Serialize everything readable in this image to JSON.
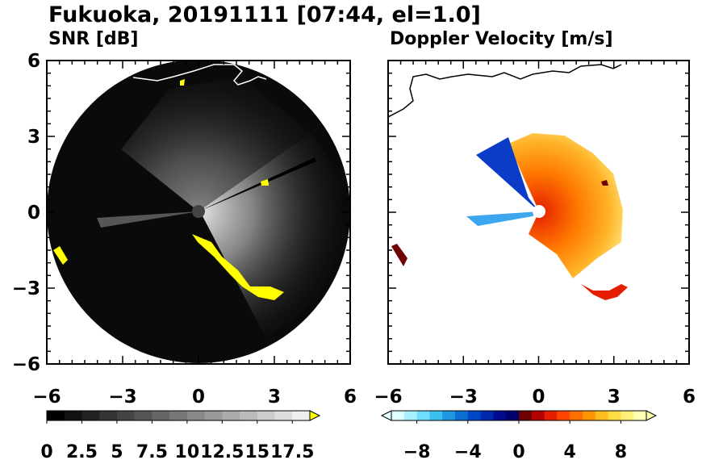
{
  "figure": {
    "title": "Fukuoka, 20191111 [07:44, el=1.0]"
  },
  "chart_data": [
    {
      "type": "heatmap",
      "title": "SNR [dB]",
      "xlim": [
        -6,
        6
      ],
      "ylim": [
        -6,
        6
      ],
      "xticks": [
        -6,
        -3,
        0,
        3,
        6
      ],
      "yticks": [
        -6,
        -3,
        0,
        3,
        6
      ],
      "xtick_labels": [
        "−6",
        "−3",
        "0",
        "3",
        "6"
      ],
      "ytick_labels": [
        "−6",
        "−3",
        "0",
        "3",
        "6"
      ],
      "range_ring_radius": 6,
      "radar_center": [
        0,
        0
      ],
      "colorbar": {
        "min": 0,
        "max": 18.75,
        "extend": "max",
        "tick_values": [
          0,
          2.5,
          5,
          7.5,
          10,
          12.5,
          15,
          17.5
        ],
        "tick_labels": [
          "0",
          "2.5",
          "5",
          "7.5",
          "10",
          "12.5",
          "15",
          "17.5"
        ],
        "over_color": "#ffff00",
        "colors": [
          "#000000",
          "#111111",
          "#222222",
          "#333333",
          "#444444",
          "#555555",
          "#666666",
          "#777777",
          "#888888",
          "#999999",
          "#aaaaaa",
          "#bbbbbb",
          "#cccccc",
          "#dddddd",
          "#eeeeee"
        ]
      }
    },
    {
      "type": "heatmap",
      "title": "Doppler Velocity [m/s]",
      "xlim": [
        -6,
        6
      ],
      "ylim": [
        -6,
        6
      ],
      "xticks": [
        -6,
        -3,
        0,
        3,
        6
      ],
      "yticks": [
        -6,
        -3,
        0,
        3,
        6
      ],
      "xtick_labels": [
        "−6",
        "−3",
        "0",
        "3",
        "6"
      ],
      "ytick_labels": [
        "−6",
        "−3",
        "0",
        "3",
        "6"
      ],
      "radar_center": [
        0,
        0
      ],
      "colorbar": {
        "min": -10,
        "max": 10,
        "extend": "both",
        "tick_values": [
          -8,
          -4,
          0,
          4,
          8
        ],
        "tick_labels": [
          "−8",
          "−4",
          "0",
          "4",
          "8"
        ],
        "colors": [
          "#e0ffff",
          "#a8f0ff",
          "#70dcff",
          "#3cc0f0",
          "#1e96e0",
          "#0a6ed2",
          "#0046c8",
          "#0028aa",
          "#000a8c",
          "#00006e",
          "#6e0000",
          "#b40000",
          "#e61e00",
          "#ff4600",
          "#ff6e00",
          "#ff9600",
          "#ffbe1e",
          "#ffdc46",
          "#fff078",
          "#ffffb4"
        ]
      }
    }
  ]
}
